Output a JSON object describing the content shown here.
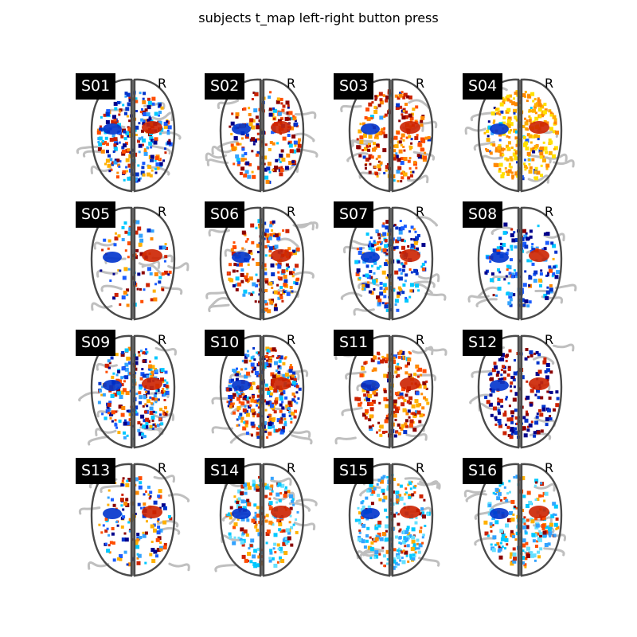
{
  "figure": {
    "title": "subjects t_map left-right button press"
  },
  "side_label": "R",
  "subjects": [
    {
      "id": "S01",
      "palette": "mixed-blue"
    },
    {
      "id": "S02",
      "palette": "mixed-warm"
    },
    {
      "id": "S03",
      "palette": "warm"
    },
    {
      "id": "S04",
      "palette": "yellow"
    },
    {
      "id": "S05",
      "palette": "sparse"
    },
    {
      "id": "S06",
      "palette": "mixed-warm"
    },
    {
      "id": "S07",
      "palette": "blue"
    },
    {
      "id": "S08",
      "palette": "blue-sparse"
    },
    {
      "id": "S09",
      "palette": "mixed-blue"
    },
    {
      "id": "S10",
      "palette": "dense-mixed"
    },
    {
      "id": "S11",
      "palette": "warm"
    },
    {
      "id": "S12",
      "palette": "dark-mixed"
    },
    {
      "id": "S13",
      "palette": "mixed-sparse"
    },
    {
      "id": "S14",
      "palette": "cyan-mixed"
    },
    {
      "id": "S15",
      "palette": "cyan"
    },
    {
      "id": "S16",
      "palette": "cyan-mixed"
    }
  ],
  "colors": {
    "outline": "#4a4a4a",
    "sulci": "#bfbfbf",
    "cold": [
      "#00008b",
      "#0033cc",
      "#1a5cff",
      "#33a3ff",
      "#00c8ff",
      "#66e0ff"
    ],
    "warm": [
      "#8b0000",
      "#cc2200",
      "#ff4d00",
      "#ff8800",
      "#ffb000",
      "#ffe000"
    ]
  }
}
